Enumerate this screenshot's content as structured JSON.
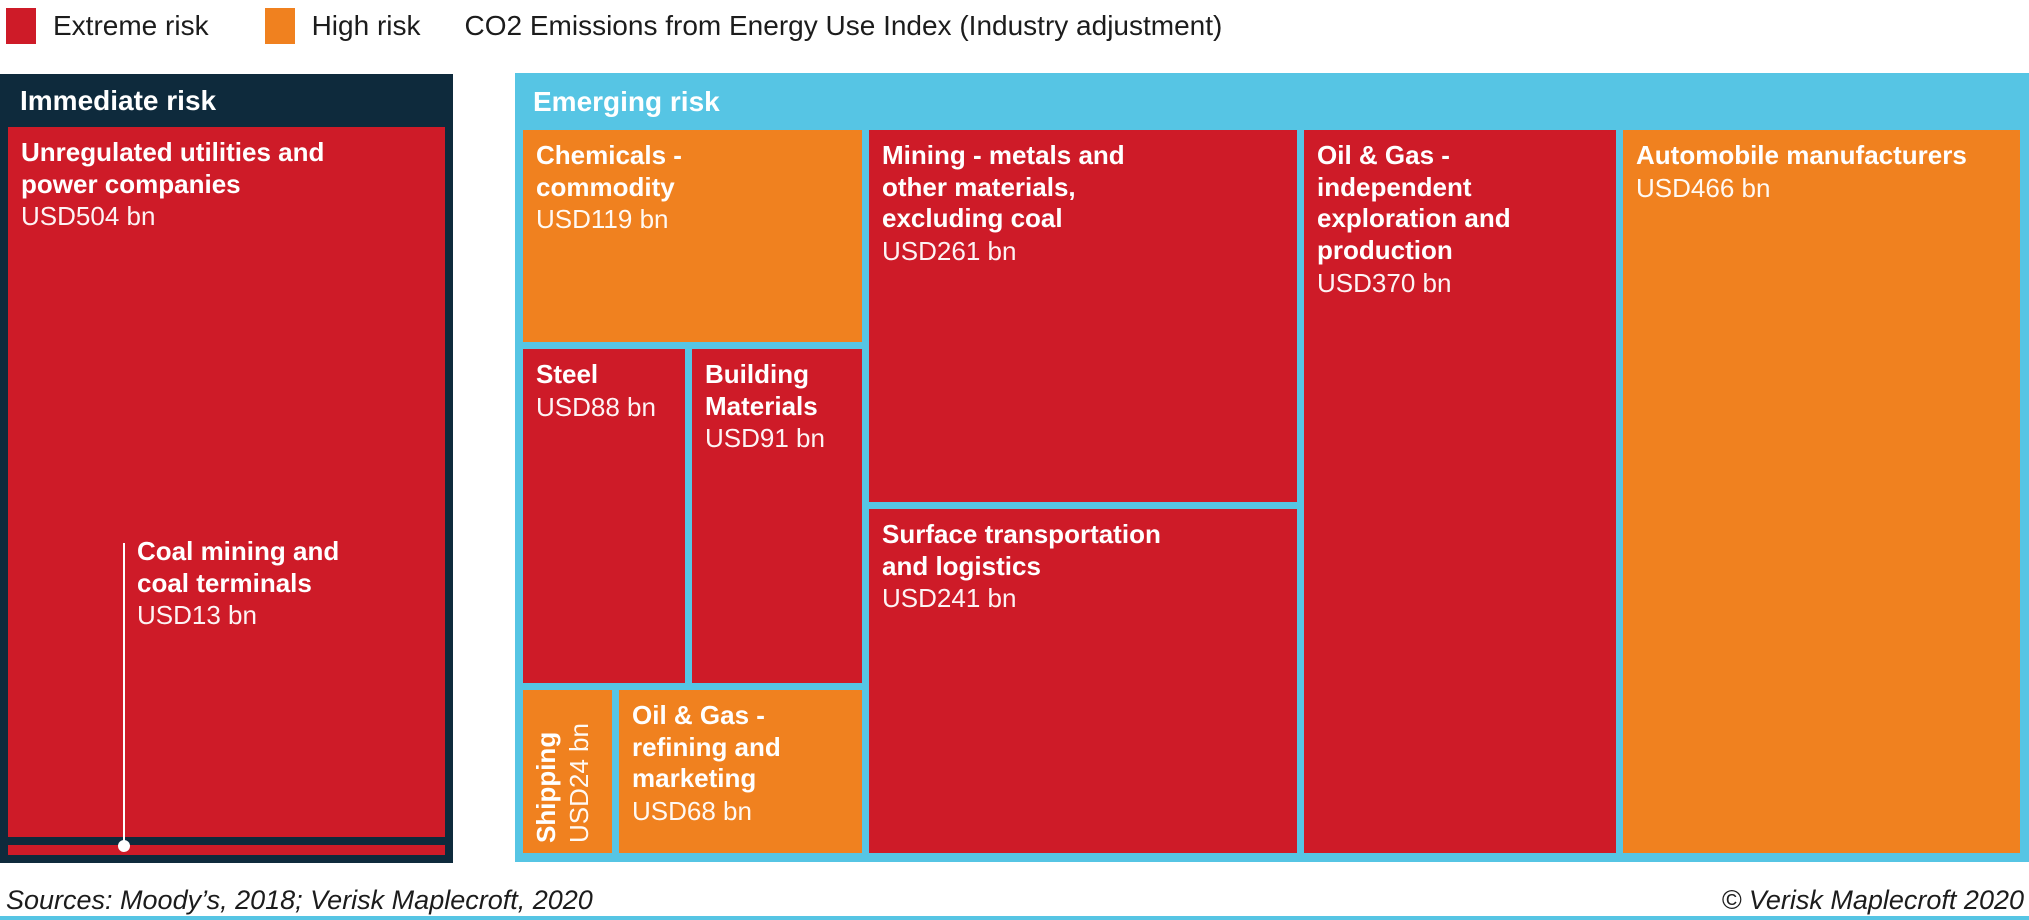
{
  "legend": {
    "items": [
      {
        "label": "Extreme risk",
        "risk": "extreme"
      },
      {
        "label": "High risk",
        "risk": "high"
      }
    ],
    "title": "CO2 Emissions from Energy Use Index (Industry adjustment)"
  },
  "colors": {
    "extreme": "#ce1b28",
    "high": "#f0811f",
    "emerging": "#56c5e4",
    "immediate": "#0e2a3c"
  },
  "footer": {
    "sources": "Sources: Moody’s, 2018; Verisk Maplecroft, 2020",
    "copyright": "© Verisk Maplecroft 2020"
  },
  "chart_data": {
    "type": "treemap",
    "title": "CO2 Emissions from Energy Use Index (Industry adjustment)",
    "legend": [
      "Extreme risk",
      "High risk"
    ],
    "units": "USD bn",
    "groups": [
      {
        "name": "Immediate risk",
        "cells": [
          {
            "label": "Unregulated utilities and\npower companies",
            "value": 504,
            "value_label": "USD504 bn",
            "risk": "extreme"
          },
          {
            "label": "Coal mining and\ncoal terminals",
            "value": 13,
            "value_label": "USD13 bn",
            "risk": "extreme"
          }
        ]
      },
      {
        "name": "Emerging risk",
        "cells": [
          {
            "label": "Chemicals -\ncommodity",
            "value": 119,
            "value_label": "USD119 bn",
            "risk": "high"
          },
          {
            "label": "Steel",
            "value": 88,
            "value_label": "USD88 bn",
            "risk": "extreme"
          },
          {
            "label": "Building\nMaterials",
            "value": 91,
            "value_label": "USD91 bn",
            "risk": "extreme"
          },
          {
            "label": "Shipping",
            "value": 24,
            "value_label": "USD24 bn",
            "risk": "high"
          },
          {
            "label": "Oil & Gas -\nrefining and\nmarketing",
            "value": 68,
            "value_label": "USD68 bn",
            "risk": "high"
          },
          {
            "label": "Mining - metals and\nother materials,\nexcluding coal",
            "value": 261,
            "value_label": "USD261 bn",
            "risk": "extreme"
          },
          {
            "label": "Surface transportation\nand logistics",
            "value": 241,
            "value_label": "USD241 bn",
            "risk": "extreme"
          },
          {
            "label": "Oil & Gas -\nindependent\nexploration and\nproduction",
            "value": 370,
            "value_label": "USD370 bn",
            "risk": "extreme"
          },
          {
            "label": "Automobile manufacturers",
            "value": 466,
            "value_label": "USD466 bn",
            "risk": "high"
          }
        ]
      }
    ]
  }
}
